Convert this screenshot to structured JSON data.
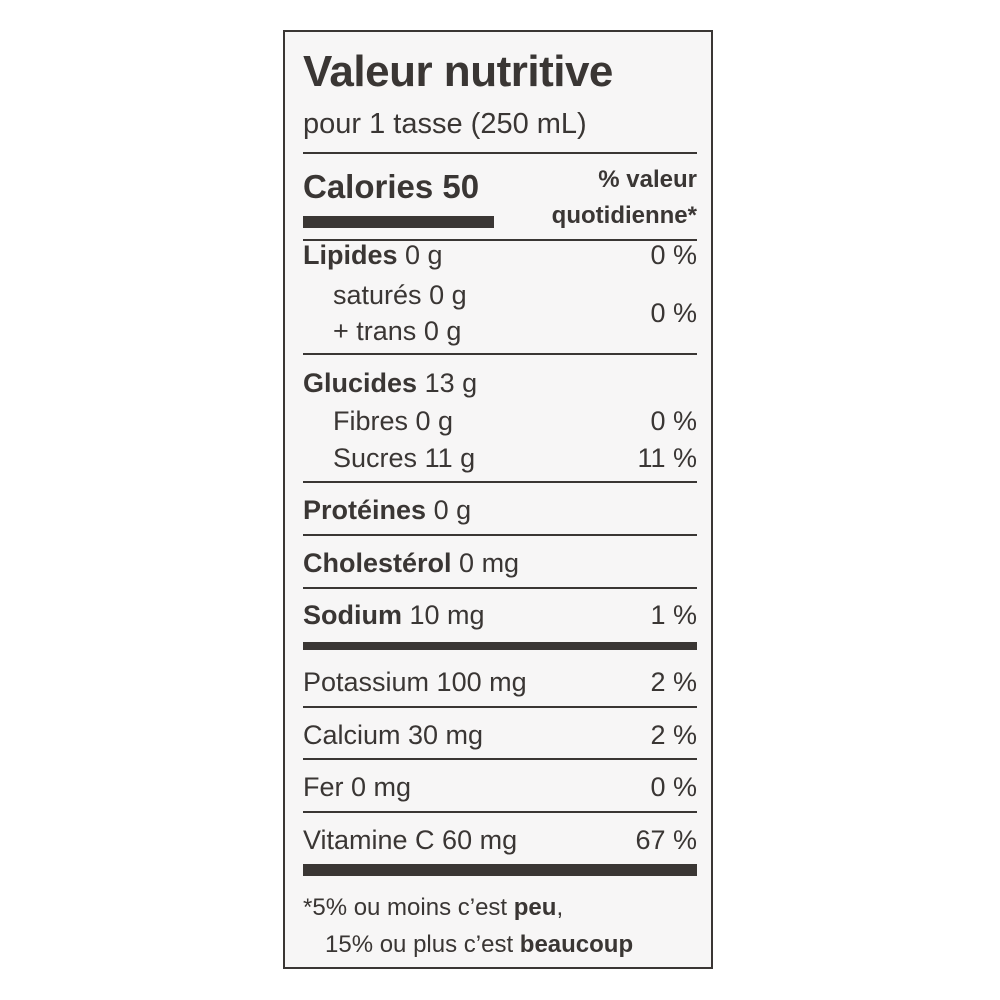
{
  "title": "Valeur nutritive",
  "serving": "pour 1 tasse (250 mL)",
  "calories": {
    "label": "Calories",
    "value": "50"
  },
  "dv_header": {
    "line1": "% valeur",
    "line2": "quotidienne*"
  },
  "lipides": {
    "label": "Lipides",
    "amount": "0 g",
    "dv": "0 %"
  },
  "satures": {
    "label": "saturés",
    "amount": "0 g"
  },
  "trans": {
    "label": "+ trans",
    "amount": "0 g",
    "dv": "0 %"
  },
  "glucides": {
    "label": "Glucides",
    "amount": "13 g"
  },
  "fibres": {
    "label": "Fibres",
    "amount": "0 g",
    "dv": "0 %"
  },
  "sucres": {
    "label": "Sucres",
    "amount": "11 g",
    "dv": "11 %"
  },
  "proteines": {
    "label": "Protéines",
    "amount": "0 g"
  },
  "cholesterol": {
    "label": "Cholestérol",
    "amount": "0 mg"
  },
  "sodium": {
    "label": "Sodium",
    "amount": "10 mg",
    "dv": "1 %"
  },
  "potassium": {
    "label": "Potassium 100 mg",
    "dv": "2 %"
  },
  "calcium": {
    "label": "Calcium 30 mg",
    "dv": "2 %"
  },
  "fer": {
    "label": "Fer 0 mg",
    "dv": "0 %"
  },
  "vitamine_c": {
    "label": "Vitamine C 60 mg",
    "dv": "67 %"
  },
  "footnote": {
    "line1_pre": "*5% ou moins c’est",
    "line1_bold": "peu",
    "line1_post": ",",
    "line2_pre": "15% ou plus c’est",
    "line2_bold": "beaucoup"
  }
}
